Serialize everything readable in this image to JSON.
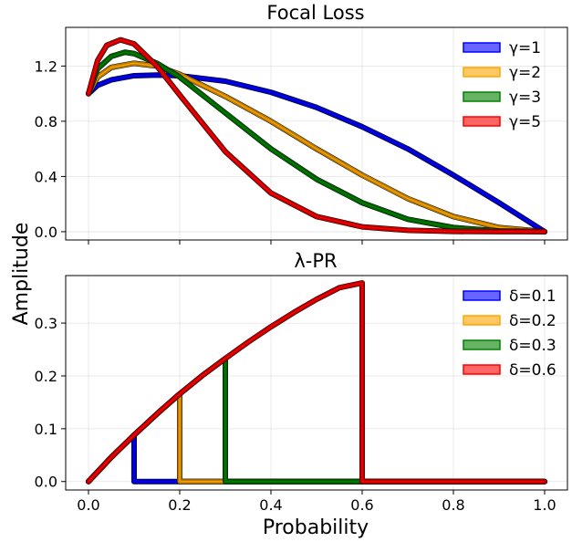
{
  "shared": {
    "xlabel": "Probability",
    "ylabel": "Amplitude"
  },
  "chart_data": [
    {
      "type": "line",
      "title": "Focal Loss",
      "xlim": [
        -0.05,
        1.05
      ],
      "ylim": [
        -0.06,
        1.48
      ],
      "xticks": [
        0.0,
        0.2,
        0.4,
        0.6,
        0.8,
        1.0
      ],
      "yticks": [
        0.0,
        0.4,
        0.8,
        1.2
      ],
      "ytick_labels": [
        "0.0",
        "0.4",
        "0.8",
        "1.2"
      ],
      "show_xtick_labels": false,
      "grid": true,
      "legend_placement": "top-right",
      "series": [
        {
          "name": "γ=1",
          "color": "#0000ff",
          "x": [
            0.0,
            0.02,
            0.05,
            0.1,
            0.15,
            0.2,
            0.3,
            0.4,
            0.5,
            0.6,
            0.7,
            0.8,
            0.9,
            1.0
          ],
          "y": [
            1.0,
            1.06,
            1.1,
            1.13,
            1.135,
            1.13,
            1.09,
            1.01,
            0.9,
            0.76,
            0.6,
            0.41,
            0.21,
            0.0
          ]
        },
        {
          "name": "γ=2",
          "color": "#ffa500",
          "x": [
            0.0,
            0.02,
            0.05,
            0.1,
            0.15,
            0.2,
            0.3,
            0.4,
            0.5,
            0.6,
            0.7,
            0.8,
            0.9,
            1.0
          ],
          "y": [
            1.0,
            1.12,
            1.19,
            1.22,
            1.2,
            1.14,
            0.98,
            0.8,
            0.6,
            0.41,
            0.24,
            0.11,
            0.03,
            0.0
          ]
        },
        {
          "name": "γ=3",
          "color": "#008000",
          "x": [
            0.0,
            0.02,
            0.05,
            0.08,
            0.1,
            0.15,
            0.2,
            0.3,
            0.4,
            0.5,
            0.6,
            0.7,
            0.8,
            0.9,
            1.0
          ],
          "y": [
            1.0,
            1.18,
            1.27,
            1.3,
            1.29,
            1.22,
            1.12,
            0.86,
            0.6,
            0.38,
            0.21,
            0.09,
            0.03,
            0.005,
            0.0
          ]
        },
        {
          "name": "γ=5",
          "color": "#ff0000",
          "x": [
            0.0,
            0.02,
            0.04,
            0.07,
            0.1,
            0.15,
            0.2,
            0.3,
            0.4,
            0.5,
            0.6,
            0.7,
            0.8,
            0.9,
            1.0
          ],
          "y": [
            1.0,
            1.24,
            1.35,
            1.39,
            1.36,
            1.2,
            0.99,
            0.58,
            0.28,
            0.11,
            0.035,
            0.01,
            0.002,
            0.0,
            0.0
          ]
        }
      ]
    },
    {
      "type": "line",
      "title": "λ-PR",
      "xlim": [
        -0.05,
        1.05
      ],
      "ylim": [
        -0.016,
        0.39
      ],
      "xticks": [
        0.0,
        0.2,
        0.4,
        0.6,
        0.8,
        1.0
      ],
      "xtick_labels": [
        "0.0",
        "0.2",
        "0.4",
        "0.6",
        "0.8",
        "1.0"
      ],
      "yticks": [
        0.0,
        0.1,
        0.2,
        0.3
      ],
      "ytick_labels": [
        "0.0",
        "0.1",
        "0.2",
        "0.3"
      ],
      "show_xtick_labels": true,
      "grid": true,
      "legend_placement": "top-right",
      "series": [
        {
          "name": "δ=0.1",
          "color": "#0000ff",
          "x": [
            0.0,
            0.05,
            0.1,
            0.1,
            1.0
          ],
          "y": [
            0.0,
            0.046,
            0.088,
            0.0,
            0.0
          ]
        },
        {
          "name": "δ=0.2",
          "color": "#ffa500",
          "x": [
            0.0,
            0.05,
            0.1,
            0.15,
            0.2,
            0.2,
            1.0
          ],
          "y": [
            0.0,
            0.046,
            0.088,
            0.128,
            0.166,
            0.0,
            0.0
          ]
        },
        {
          "name": "δ=0.3",
          "color": "#008000",
          "x": [
            0.0,
            0.05,
            0.1,
            0.15,
            0.2,
            0.25,
            0.3,
            0.3,
            1.0
          ],
          "y": [
            0.0,
            0.046,
            0.088,
            0.128,
            0.166,
            0.201,
            0.233,
            0.0,
            0.0
          ]
        },
        {
          "name": "δ=0.6",
          "color": "#ff0000",
          "x": [
            0.0,
            0.05,
            0.1,
            0.15,
            0.2,
            0.25,
            0.3,
            0.35,
            0.4,
            0.45,
            0.5,
            0.55,
            0.6,
            0.6,
            1.0
          ],
          "y": [
            0.0,
            0.046,
            0.088,
            0.128,
            0.166,
            0.201,
            0.233,
            0.264,
            0.293,
            0.32,
            0.345,
            0.367,
            0.376,
            0.0,
            0.0
          ]
        }
      ]
    }
  ]
}
